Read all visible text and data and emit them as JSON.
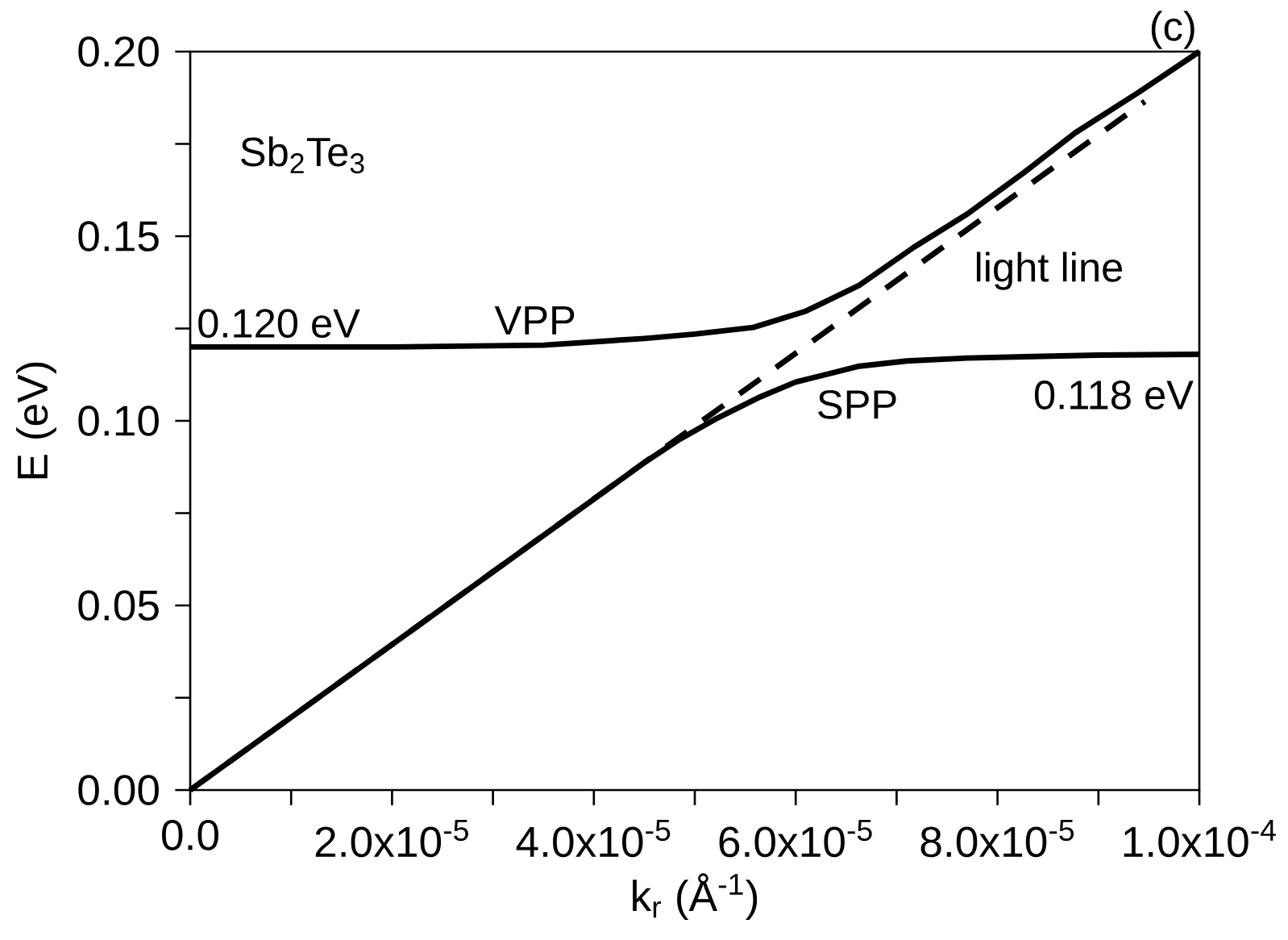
{
  "chart_data": {
    "type": "line",
    "xlabel": "k$_{r}$ (Å$^{-1}$)",
    "ylabel": "E (eV)",
    "xlim": [
      0,
      0.0001
    ],
    "ylim": [
      0,
      0.2
    ],
    "xticks": [
      {
        "value": 0,
        "label": "0.0"
      },
      {
        "value": 1e-05,
        "label": null
      },
      {
        "value": 2e-05,
        "label": "2.0x10$^{-5}$"
      },
      {
        "value": 3e-05,
        "label": null
      },
      {
        "value": 4e-05,
        "label": "4.0x10$^{-5}$"
      },
      {
        "value": 5e-05,
        "label": null
      },
      {
        "value": 6e-05,
        "label": "6.0x10$^{-5}$"
      },
      {
        "value": 7e-05,
        "label": null
      },
      {
        "value": 8e-05,
        "label": "8.0x10$^{-5}$"
      },
      {
        "value": 9e-05,
        "label": null
      },
      {
        "value": 0.0001,
        "label": "1.0x10$^{-4}$"
      }
    ],
    "yticks": [
      {
        "value": 0,
        "label": "0.00"
      },
      {
        "value": 0.025,
        "label": null
      },
      {
        "value": 0.05,
        "label": "0.05"
      },
      {
        "value": 0.075,
        "label": null
      },
      {
        "value": 0.1,
        "label": "0.10"
      },
      {
        "value": 0.125,
        "label": null
      },
      {
        "value": 0.15,
        "label": "0.15"
      },
      {
        "value": 0.175,
        "label": null
      },
      {
        "value": 0.2,
        "label": "0.20"
      }
    ],
    "series": [
      {
        "color": "#000000",
        "line_style": "solid",
        "x": [
          0,
          2e-05,
          3.5e-05,
          4.5e-05,
          5e-05,
          5.58e-05,
          6.1e-05,
          6.63e-05,
          7.17e-05,
          7.7e-05,
          8.25e-05,
          8.77e-05,
          9.4e-05,
          0.0001
        ],
        "values": [
          0.12,
          0.12,
          0.1205,
          0.1223,
          0.1235,
          0.1253,
          0.1297,
          0.1367,
          0.147,
          0.156,
          0.167,
          0.178,
          0.189,
          0.2
        ]
      },
      {
        "color": "#000000",
        "line_style": "solid",
        "x": [
          0,
          2e-05,
          4e-05,
          4.5e-05,
          4.85e-05,
          5.2e-05,
          5.65e-05,
          6e-05,
          6.63e-05,
          7.1e-05,
          7.7e-05,
          9e-05,
          0.0001
        ],
        "values": [
          0,
          0.0394,
          0.0788,
          0.0887,
          0.095,
          0.1004,
          0.1065,
          0.1105,
          0.1148,
          0.1162,
          0.117,
          0.1178,
          0.118
        ]
      },
      {
        "color": "#000000",
        "line_style": "dashed",
        "x": [
          0,
          9.46e-05
        ],
        "values": [
          0,
          0.1865
        ]
      }
    ],
    "annotations": [
      "Sb$_{2}$Te$_{3}$",
      "(c)",
      "0.120 eV",
      "VPP",
      "light line",
      "SPP",
      "0.118 eV"
    ]
  }
}
